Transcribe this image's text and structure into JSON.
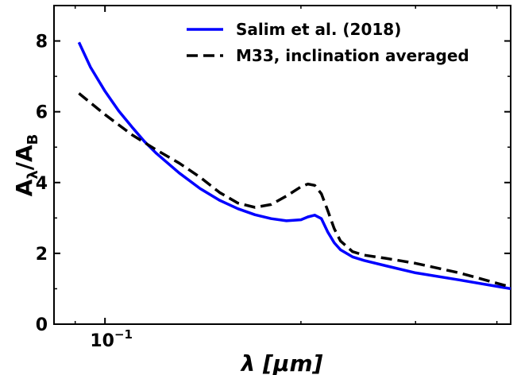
{
  "chart_data": {
    "type": "line",
    "xlabel": "λ [μm]",
    "ylabel_main": "A",
    "ylabel_sub1": "λ",
    "ylabel_mid": "/A",
    "ylabel_sub2": "B",
    "x_scale": "log",
    "xlim": [
      0.0835,
      0.42
    ],
    "ylim": [
      0,
      9
    ],
    "y_ticks": [
      "0",
      "2",
      "4",
      "6",
      "8"
    ],
    "x_tick_base": "10",
    "x_tick_exp": "−1",
    "legend_position": "top-right",
    "series": [
      {
        "name": "Salim et al. (2018)",
        "color": "#0000ff",
        "style": "solid",
        "x": [
          0.0912,
          0.095,
          0.1,
          0.105,
          0.11,
          0.115,
          0.12,
          0.13,
          0.14,
          0.15,
          0.16,
          0.17,
          0.18,
          0.19,
          0.2,
          0.205,
          0.21,
          0.215,
          0.22,
          0.225,
          0.23,
          0.24,
          0.25,
          0.27,
          0.3,
          0.35,
          0.42
        ],
        "y": [
          7.96,
          7.26,
          6.58,
          6.02,
          5.57,
          5.16,
          4.82,
          4.27,
          3.83,
          3.5,
          3.26,
          3.09,
          2.98,
          2.92,
          2.95,
          3.03,
          3.08,
          2.98,
          2.6,
          2.3,
          2.1,
          1.9,
          1.8,
          1.65,
          1.45,
          1.25,
          1.0
        ]
      },
      {
        "name": "M33, inclination averaged",
        "color": "#000000",
        "style": "dashed",
        "x": [
          0.0912,
          0.1,
          0.11,
          0.12,
          0.13,
          0.14,
          0.15,
          0.16,
          0.17,
          0.18,
          0.19,
          0.2,
          0.205,
          0.21,
          0.215,
          0.22,
          0.225,
          0.23,
          0.24,
          0.25,
          0.27,
          0.3,
          0.35,
          0.42
        ],
        "y": [
          6.52,
          5.92,
          5.35,
          4.92,
          4.55,
          4.15,
          3.72,
          3.42,
          3.3,
          3.38,
          3.62,
          3.88,
          3.96,
          3.92,
          3.68,
          3.2,
          2.7,
          2.35,
          2.05,
          1.95,
          1.86,
          1.72,
          1.45,
          1.05
        ]
      }
    ]
  }
}
